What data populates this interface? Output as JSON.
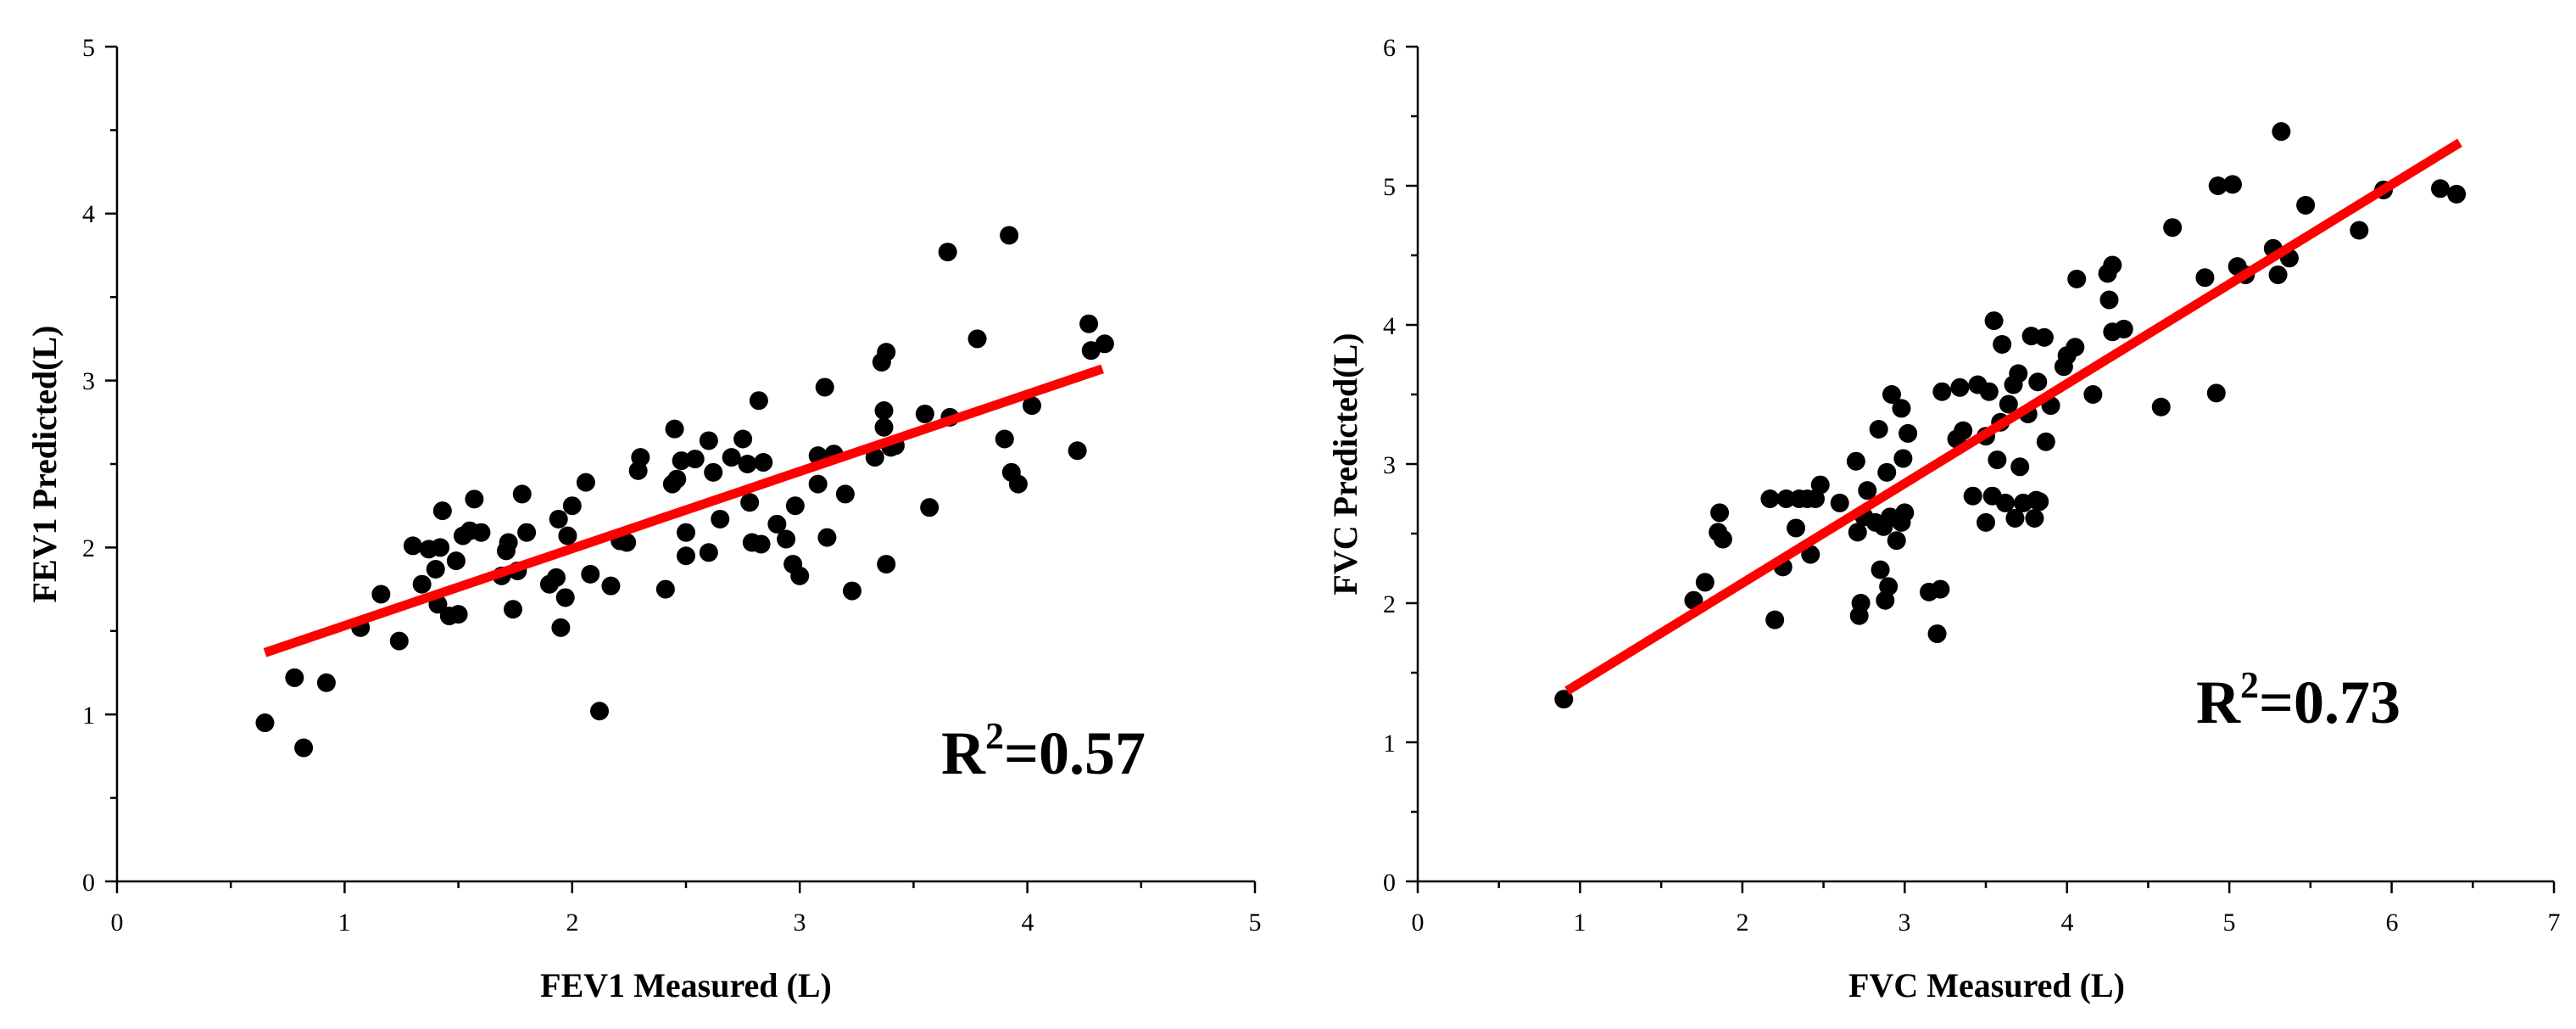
{
  "chart_data": [
    {
      "type": "scatter",
      "xlabel": "FEV1 Measured (L)",
      "ylabel": "FEV1 Predicted(L)",
      "xlim": [
        0,
        5
      ],
      "ylim": [
        0,
        5
      ],
      "xticks": [
        "0",
        "1",
        "2",
        "3",
        "4",
        "5"
      ],
      "yticks": [
        "0",
        "1",
        "2",
        "3",
        "4",
        "5"
      ],
      "r2": {
        "base": "R",
        "exp": "2",
        "rest": "=0.57"
      },
      "fit_line": {
        "x": [
          0.65,
          4.33
        ],
        "y": [
          1.37,
          3.07
        ],
        "color": "#ff0000"
      },
      "point_color": "#000000",
      "points": [
        [
          0.65,
          0.95
        ],
        [
          0.78,
          1.22
        ],
        [
          0.82,
          0.8
        ],
        [
          0.92,
          1.19
        ],
        [
          1.07,
          1.52
        ],
        [
          1.16,
          1.72
        ],
        [
          1.24,
          1.44
        ],
        [
          1.3,
          2.01
        ],
        [
          1.34,
          1.78
        ],
        [
          1.37,
          1.99
        ],
        [
          1.4,
          1.87
        ],
        [
          1.41,
          1.66
        ],
        [
          1.42,
          2.0
        ],
        [
          1.43,
          2.22
        ],
        [
          1.46,
          1.59
        ],
        [
          1.49,
          1.92
        ],
        [
          1.5,
          1.6
        ],
        [
          1.52,
          2.07
        ],
        [
          1.55,
          2.1
        ],
        [
          1.57,
          2.29
        ],
        [
          1.6,
          2.09
        ],
        [
          1.69,
          1.83
        ],
        [
          1.71,
          1.98
        ],
        [
          1.72,
          2.03
        ],
        [
          1.74,
          1.63
        ],
        [
          1.76,
          1.86
        ],
        [
          1.78,
          2.32
        ],
        [
          1.8,
          2.09
        ],
        [
          1.9,
          1.78
        ],
        [
          1.93,
          1.82
        ],
        [
          1.94,
          2.17
        ],
        [
          1.95,
          1.52
        ],
        [
          1.97,
          1.7
        ],
        [
          1.98,
          2.07
        ],
        [
          2.0,
          2.25
        ],
        [
          2.06,
          2.39
        ],
        [
          2.08,
          1.84
        ],
        [
          2.12,
          1.02
        ],
        [
          2.17,
          1.77
        ],
        [
          2.21,
          2.04
        ],
        [
          2.24,
          2.03
        ],
        [
          2.29,
          2.46
        ],
        [
          2.3,
          2.54
        ],
        [
          2.41,
          1.75
        ],
        [
          2.44,
          2.38
        ],
        [
          2.45,
          2.71
        ],
        [
          2.46,
          2.41
        ],
        [
          2.48,
          2.52
        ],
        [
          2.5,
          1.95
        ],
        [
          2.5,
          2.09
        ],
        [
          2.54,
          2.53
        ],
        [
          2.6,
          2.64
        ],
        [
          2.6,
          1.97
        ],
        [
          2.62,
          2.45
        ],
        [
          2.65,
          2.17
        ],
        [
          2.7,
          2.54
        ],
        [
          2.75,
          2.65
        ],
        [
          2.77,
          2.5
        ],
        [
          2.78,
          2.27
        ],
        [
          2.79,
          2.03
        ],
        [
          2.82,
          2.88
        ],
        [
          2.83,
          2.02
        ],
        [
          2.84,
          2.51
        ],
        [
          2.9,
          2.14
        ],
        [
          2.94,
          2.05
        ],
        [
          2.97,
          1.9
        ],
        [
          2.98,
          2.25
        ],
        [
          3.0,
          1.83
        ],
        [
          3.08,
          2.38
        ],
        [
          3.08,
          2.55
        ],
        [
          3.11,
          2.96
        ],
        [
          3.12,
          2.06
        ],
        [
          3.15,
          2.56
        ],
        [
          3.2,
          2.32
        ],
        [
          3.23,
          1.74
        ],
        [
          3.33,
          2.54
        ],
        [
          3.36,
          3.11
        ],
        [
          3.37,
          2.82
        ],
        [
          3.37,
          2.72
        ],
        [
          3.38,
          3.17
        ],
        [
          3.38,
          1.9
        ],
        [
          3.4,
          2.6
        ],
        [
          3.42,
          2.61
        ],
        [
          3.55,
          2.8
        ],
        [
          3.57,
          2.24
        ],
        [
          3.65,
          3.77
        ],
        [
          3.66,
          2.78
        ],
        [
          3.78,
          3.25
        ],
        [
          3.9,
          2.65
        ],
        [
          3.92,
          3.87
        ],
        [
          3.93,
          2.45
        ],
        [
          3.96,
          2.38
        ],
        [
          4.02,
          2.85
        ],
        [
          4.22,
          2.58
        ],
        [
          4.27,
          3.34
        ],
        [
          4.28,
          3.18
        ],
        [
          4.34,
          3.22
        ]
      ]
    },
    {
      "type": "scatter",
      "xlabel": "FVC Measured (L)",
      "ylabel": "FVC Predicted(L)",
      "xlim": [
        0,
        7
      ],
      "ylim": [
        0,
        6
      ],
      "xticks": [
        "0",
        "1",
        "2",
        "3",
        "4",
        "5",
        "6",
        "7"
      ],
      "yticks": [
        "0",
        "1",
        "2",
        "3",
        "4",
        "5",
        "6"
      ],
      "r2": {
        "base": "R",
        "exp": "2",
        "rest": "=0.73"
      },
      "fit_line": {
        "x": [
          0.92,
          6.42
        ],
        "y": [
          1.37,
          5.31
        ],
        "color": "#ff0000"
      },
      "point_color": "#000000",
      "points": [
        [
          0.9,
          1.31
        ],
        [
          1.7,
          2.02
        ],
        [
          1.77,
          2.15
        ],
        [
          1.85,
          2.51
        ],
        [
          1.86,
          2.65
        ],
        [
          1.88,
          2.46
        ],
        [
          2.17,
          2.75
        ],
        [
          2.2,
          1.88
        ],
        [
          2.25,
          2.26
        ],
        [
          2.27,
          2.75
        ],
        [
          2.33,
          2.54
        ],
        [
          2.35,
          2.75
        ],
        [
          2.4,
          2.75
        ],
        [
          2.42,
          2.35
        ],
        [
          2.45,
          2.75
        ],
        [
          2.48,
          2.85
        ],
        [
          2.6,
          2.72
        ],
        [
          2.7,
          3.02
        ],
        [
          2.71,
          2.51
        ],
        [
          2.72,
          1.91
        ],
        [
          2.73,
          2.0
        ],
        [
          2.75,
          2.62
        ],
        [
          2.77,
          2.81
        ],
        [
          2.82,
          2.58
        ],
        [
          2.84,
          3.25
        ],
        [
          2.85,
          2.24
        ],
        [
          2.87,
          2.55
        ],
        [
          2.88,
          2.02
        ],
        [
          2.89,
          2.94
        ],
        [
          2.9,
          2.12
        ],
        [
          2.91,
          2.62
        ],
        [
          2.92,
          3.5
        ],
        [
          2.95,
          2.45
        ],
        [
          2.98,
          2.58
        ],
        [
          2.98,
          3.4
        ],
        [
          2.99,
          3.04
        ],
        [
          3.0,
          2.65
        ],
        [
          3.02,
          3.22
        ],
        [
          3.15,
          2.08
        ],
        [
          3.2,
          1.78
        ],
        [
          3.22,
          2.1
        ],
        [
          3.23,
          3.52
        ],
        [
          3.32,
          3.18
        ],
        [
          3.34,
          3.55
        ],
        [
          3.36,
          3.24
        ],
        [
          3.42,
          2.77
        ],
        [
          3.45,
          3.57
        ],
        [
          3.5,
          2.58
        ],
        [
          3.5,
          3.2
        ],
        [
          3.52,
          3.52
        ],
        [
          3.54,
          2.77
        ],
        [
          3.55,
          4.03
        ],
        [
          3.57,
          3.03
        ],
        [
          3.59,
          3.3
        ],
        [
          3.6,
          3.86
        ],
        [
          3.62,
          2.72
        ],
        [
          3.64,
          3.43
        ],
        [
          3.67,
          3.57
        ],
        [
          3.68,
          2.61
        ],
        [
          3.7,
          3.65
        ],
        [
          3.71,
          2.98
        ],
        [
          3.73,
          2.72
        ],
        [
          3.76,
          3.36
        ],
        [
          3.78,
          3.92
        ],
        [
          3.8,
          2.61
        ],
        [
          3.81,
          2.74
        ],
        [
          3.82,
          3.59
        ],
        [
          3.83,
          2.73
        ],
        [
          3.86,
          3.91
        ],
        [
          3.87,
          3.16
        ],
        [
          3.9,
          3.42
        ],
        [
          3.98,
          3.7
        ],
        [
          4.0,
          3.78
        ],
        [
          4.05,
          3.84
        ],
        [
          4.06,
          4.33
        ],
        [
          4.16,
          3.5
        ],
        [
          4.25,
          4.37
        ],
        [
          4.26,
          4.18
        ],
        [
          4.28,
          3.95
        ],
        [
          4.28,
          4.43
        ],
        [
          4.35,
          3.97
        ],
        [
          4.58,
          3.41
        ],
        [
          4.65,
          4.7
        ],
        [
          4.85,
          4.34
        ],
        [
          4.92,
          3.51
        ],
        [
          4.93,
          5.0
        ],
        [
          5.02,
          5.01
        ],
        [
          5.05,
          4.42
        ],
        [
          5.1,
          4.36
        ],
        [
          5.27,
          4.55
        ],
        [
          5.3,
          4.36
        ],
        [
          5.32,
          5.39
        ],
        [
          5.37,
          4.48
        ],
        [
          5.47,
          4.86
        ],
        [
          5.8,
          4.68
        ],
        [
          5.95,
          4.97
        ],
        [
          6.3,
          4.98
        ],
        [
          6.4,
          4.94
        ]
      ]
    }
  ]
}
